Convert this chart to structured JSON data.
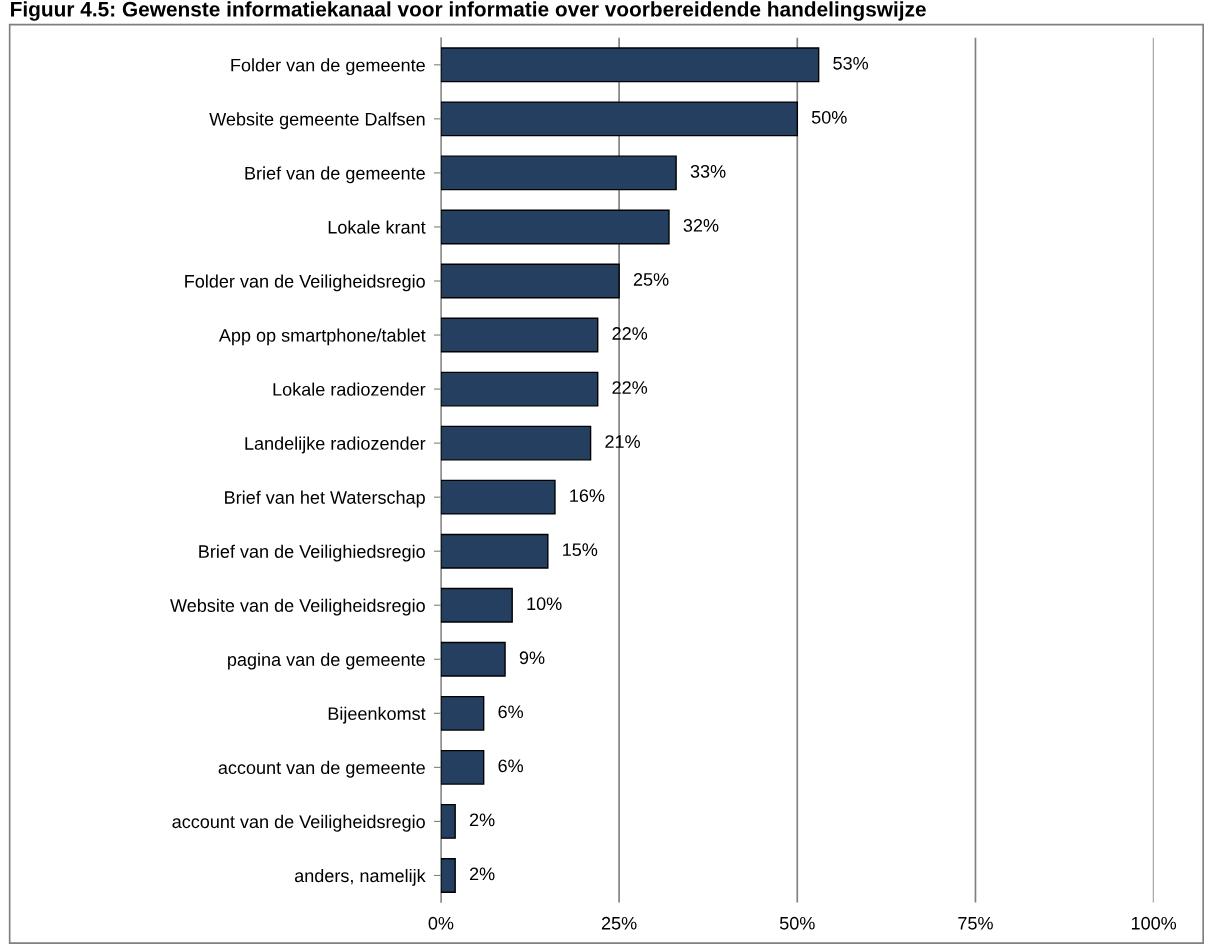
{
  "chart_data": {
    "type": "bar",
    "orientation": "horizontal",
    "title": "Figuur 4.5: Gewenste informatiekanaal voor informatie over voorbereidende handelingswijze",
    "categories": [
      "Folder van de gemeente",
      "Website gemeente Dalfsen",
      "Brief van de gemeente",
      "Lokale krant",
      "Folder van de Veiligheidsregio",
      "App op smartphone/tablet",
      "Lokale radiozender",
      "Landelijke radiozender",
      "Brief van het Waterschap",
      "Brief van de Veilighiedsregio",
      "Website van de Veiligheidsregio",
      "pagina van de gemeente",
      "Bijeenkomst",
      "account van de gemeente",
      "account van de Veiligheidsregio",
      "anders, namelijk"
    ],
    "values": [
      53,
      50,
      33,
      32,
      25,
      22,
      22,
      21,
      16,
      15,
      10,
      9,
      6,
      6,
      2,
      2
    ],
    "value_labels": [
      "53%",
      "50%",
      "33%",
      "32%",
      "25%",
      "22%",
      "22%",
      "21%",
      "16%",
      "15%",
      "10%",
      "9%",
      "6%",
      "6%",
      "2%",
      "2%"
    ],
    "color": "#243f60",
    "xlim": [
      0,
      100
    ],
    "xticks": [
      {
        "value": 0,
        "label": "0%"
      },
      {
        "value": 25,
        "label": "25%"
      },
      {
        "value": 50,
        "label": "50%"
      },
      {
        "value": 75,
        "label": "75%"
      },
      {
        "value": 100,
        "label": "100%"
      }
    ],
    "grid": "x"
  }
}
